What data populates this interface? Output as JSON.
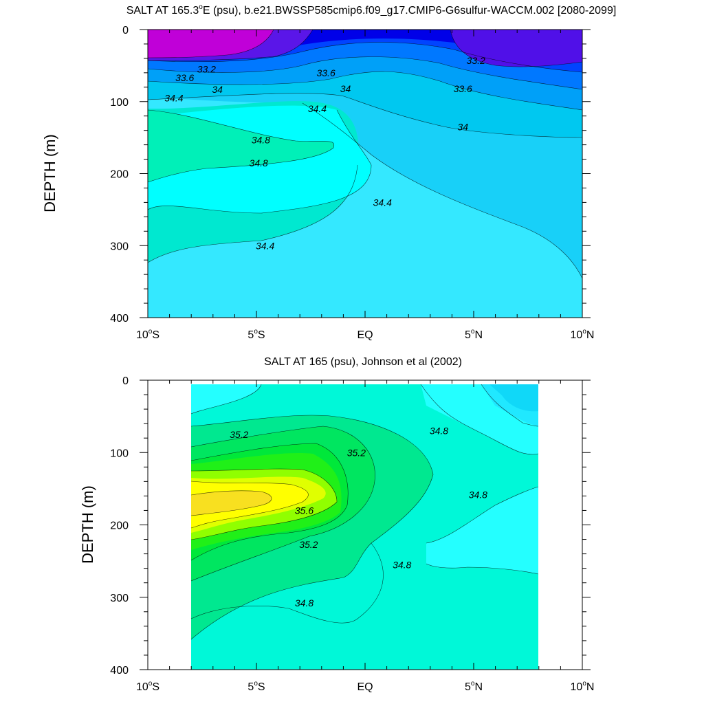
{
  "chart_data": [
    {
      "type": "contour",
      "title": "SALT AT 165.3°E (psu), b.e21.BWSSP585cmip6.f09_g17.CMIP6-G6sulfur-WACCM.002 [2080-2099]",
      "title_parts": {
        "before": "SALT AT 165.3",
        "deg": "o",
        "after": "E (psu), b.e21.BWSSP585cmip6.f09_g17.CMIP6-G6sulfur-WACCM.002 [2080-2099]"
      },
      "ylabel": "DEPTH (m)",
      "xlim": [
        -10,
        10
      ],
      "ylim": [
        400,
        0
      ],
      "y_reversed": true,
      "xticks": [
        {
          "value": -10,
          "num": "10",
          "hem": "S"
        },
        {
          "value": -5,
          "num": "5",
          "hem": "S"
        },
        {
          "value": 0,
          "num": "EQ",
          "hem": ""
        },
        {
          "value": 5,
          "num": "5",
          "hem": "N"
        },
        {
          "value": 10,
          "num": "10",
          "hem": "N"
        }
      ],
      "yticks": [
        0,
        100,
        200,
        300,
        400
      ],
      "contour_labels": [
        {
          "text": "33.2",
          "lat": -7.3,
          "depth": 55
        },
        {
          "text": "33.6",
          "lat": -8.3,
          "depth": 67
        },
        {
          "text": "34",
          "lat": -6.8,
          "depth": 83
        },
        {
          "text": "34.4",
          "lat": -8.8,
          "depth": 95
        },
        {
          "text": "33.6",
          "lat": -1.8,
          "depth": 60
        },
        {
          "text": "34",
          "lat": -0.9,
          "depth": 82
        },
        {
          "text": "34.4",
          "lat": -2.2,
          "depth": 110
        },
        {
          "text": "34.8",
          "lat": -4.8,
          "depth": 153
        },
        {
          "text": "34.8",
          "lat": -4.9,
          "depth": 185
        },
        {
          "text": "34.4",
          "lat": 0.8,
          "depth": 240
        },
        {
          "text": "34.4",
          "lat": -4.6,
          "depth": 300
        },
        {
          "text": "33.2",
          "lat": 5.1,
          "depth": 43
        },
        {
          "text": "33.6",
          "lat": 4.5,
          "depth": 82
        },
        {
          "text": "34",
          "lat": 4.5,
          "depth": 135
        }
      ]
    },
    {
      "type": "contour",
      "title": "SALT AT 165 (psu), Johnson et al (2002)",
      "ylabel": "DEPTH (m)",
      "xlim": [
        -10,
        10
      ],
      "ylim": [
        400,
        0
      ],
      "y_reversed": true,
      "data_lat_range": [
        -8,
        8
      ],
      "xticks": [
        {
          "value": -10,
          "num": "10",
          "hem": "S"
        },
        {
          "value": -5,
          "num": "5",
          "hem": "S"
        },
        {
          "value": 0,
          "num": "EQ",
          "hem": ""
        },
        {
          "value": 5,
          "num": "5",
          "hem": "N"
        },
        {
          "value": 10,
          "num": "10",
          "hem": "N"
        }
      ],
      "yticks": [
        0,
        100,
        200,
        300,
        400
      ],
      "contour_labels": [
        {
          "text": "35.2",
          "lat": -5.8,
          "depth": 75
        },
        {
          "text": "35.2",
          "lat": -0.4,
          "depth": 100
        },
        {
          "text": "35.6",
          "lat": -2.8,
          "depth": 180
        },
        {
          "text": "35.2",
          "lat": -2.6,
          "depth": 227
        },
        {
          "text": "34.8",
          "lat": 3.4,
          "depth": 70
        },
        {
          "text": "34.8",
          "lat": 5.2,
          "depth": 158
        },
        {
          "text": "34.8",
          "lat": 1.7,
          "depth": 255
        },
        {
          "text": "34.8",
          "lat": -2.8,
          "depth": 308
        }
      ]
    }
  ]
}
